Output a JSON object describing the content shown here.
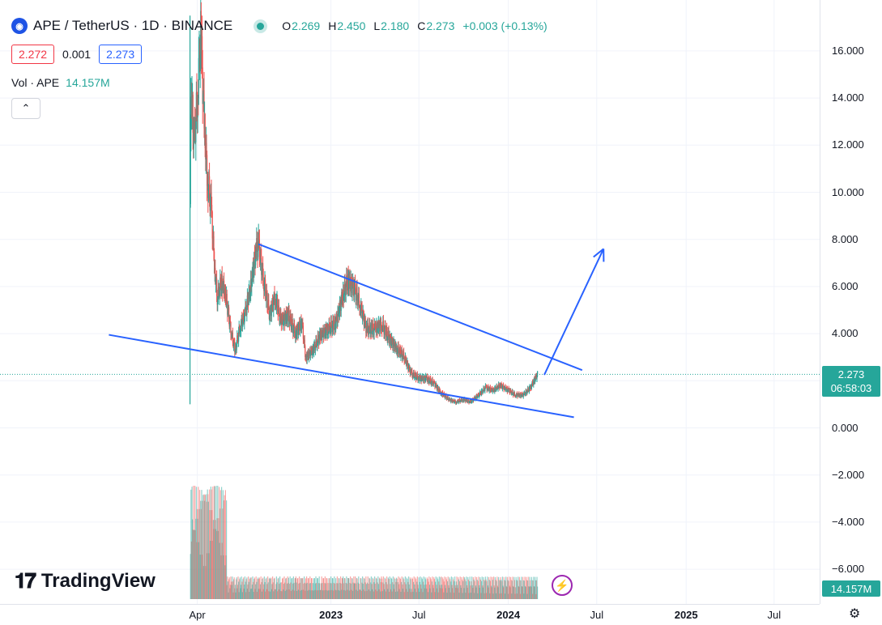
{
  "header": {
    "symbol_icon": "ape-coin-logo",
    "title": "APE / TetherUS · 1D · BINANCE",
    "ohlc": {
      "o_label": "O",
      "o": "2.269",
      "h_label": "H",
      "h": "2.450",
      "l_label": "L",
      "l": "2.180",
      "c_label": "C",
      "c": "2.273",
      "change": "+0.003 (+0.13%)"
    },
    "bid": "2.272",
    "spread": "0.001",
    "ask": "2.273"
  },
  "volume_legend": {
    "label": "Vol · APE",
    "value": "14.157M"
  },
  "collapse_icon": "chevron-up-icon",
  "brand": "TradingView",
  "price_scale": {
    "ticks": [
      "16.000",
      "14.000",
      "12.000",
      "10.000",
      "8.000",
      "6.000",
      "4.000",
      "2.000",
      "0.000",
      "−2.000",
      "−4.000",
      "−6.000"
    ],
    "last_price": "2.273",
    "countdown": "06:58:03",
    "volume_tag": "14.157M"
  },
  "time_scale": {
    "ticks": [
      "Apr",
      "2023",
      "Jul",
      "2024",
      "Jul",
      "2025",
      "Jul"
    ]
  },
  "colors": {
    "up": "#26a69a",
    "down": "#ef5350",
    "drawing": "#2962ff",
    "grid": "#f0f3fa"
  },
  "chart_data": {
    "type": "candlestick",
    "symbol": "APEUSDT",
    "interval": "1D",
    "y_range": [
      -6.5,
      17.5
    ],
    "last_close": 2.273,
    "series": [
      {
        "date": "2022-03-17",
        "close": 9.5
      },
      {
        "date": "2022-03-19",
        "close": 14.8
      },
      {
        "date": "2022-03-25",
        "close": 12.0
      },
      {
        "date": "2022-04-01",
        "close": 14.0
      },
      {
        "date": "2022-04-08",
        "close": 16.8
      },
      {
        "date": "2022-04-15",
        "close": 13.0
      },
      {
        "date": "2022-04-22",
        "close": 10.5
      },
      {
        "date": "2022-04-29",
        "close": 9.5
      },
      {
        "date": "2022-05-06",
        "close": 7.0
      },
      {
        "date": "2022-05-12",
        "close": 5.5
      },
      {
        "date": "2022-05-20",
        "close": 6.2
      },
      {
        "date": "2022-05-28",
        "close": 5.8
      },
      {
        "date": "2022-06-10",
        "close": 4.0
      },
      {
        "date": "2022-06-18",
        "close": 3.3
      },
      {
        "date": "2022-06-28",
        "close": 4.3
      },
      {
        "date": "2022-07-08",
        "close": 4.8
      },
      {
        "date": "2022-07-20",
        "close": 6.0
      },
      {
        "date": "2022-07-30",
        "close": 7.5
      },
      {
        "date": "2022-08-05",
        "close": 7.8
      },
      {
        "date": "2022-08-15",
        "close": 6.3
      },
      {
        "date": "2022-08-28",
        "close": 4.8
      },
      {
        "date": "2022-09-08",
        "close": 5.6
      },
      {
        "date": "2022-09-20",
        "close": 4.5
      },
      {
        "date": "2022-10-05",
        "close": 4.8
      },
      {
        "date": "2022-10-20",
        "close": 4.0
      },
      {
        "date": "2022-11-02",
        "close": 4.5
      },
      {
        "date": "2022-11-10",
        "close": 3.0
      },
      {
        "date": "2022-11-25",
        "close": 3.3
      },
      {
        "date": "2022-12-10",
        "close": 3.9
      },
      {
        "date": "2022-12-25",
        "close": 4.2
      },
      {
        "date": "2023-01-10",
        "close": 4.4
      },
      {
        "date": "2023-01-25",
        "close": 5.6
      },
      {
        "date": "2023-02-05",
        "close": 6.3
      },
      {
        "date": "2023-02-18",
        "close": 5.9
      },
      {
        "date": "2023-03-01",
        "close": 5.3
      },
      {
        "date": "2023-03-15",
        "close": 4.2
      },
      {
        "date": "2023-04-01",
        "close": 4.2
      },
      {
        "date": "2023-04-15",
        "close": 4.4
      },
      {
        "date": "2023-05-01",
        "close": 3.8
      },
      {
        "date": "2023-05-15",
        "close": 3.4
      },
      {
        "date": "2023-06-01",
        "close": 3.0
      },
      {
        "date": "2023-06-15",
        "close": 2.3
      },
      {
        "date": "2023-07-01",
        "close": 2.1
      },
      {
        "date": "2023-07-15",
        "close": 2.1
      },
      {
        "date": "2023-08-01",
        "close": 1.9
      },
      {
        "date": "2023-08-15",
        "close": 1.5
      },
      {
        "date": "2023-09-01",
        "close": 1.2
      },
      {
        "date": "2023-09-15",
        "close": 1.1
      },
      {
        "date": "2023-10-01",
        "close": 1.2
      },
      {
        "date": "2023-10-15",
        "close": 1.1
      },
      {
        "date": "2023-11-01",
        "close": 1.4
      },
      {
        "date": "2023-11-15",
        "close": 1.7
      },
      {
        "date": "2023-12-01",
        "close": 1.6
      },
      {
        "date": "2023-12-15",
        "close": 1.8
      },
      {
        "date": "2024-01-01",
        "close": 1.6
      },
      {
        "date": "2024-01-15",
        "close": 1.4
      },
      {
        "date": "2024-02-01",
        "close": 1.4
      },
      {
        "date": "2024-02-15",
        "close": 1.7
      },
      {
        "date": "2024-03-01",
        "close": 2.273
      }
    ],
    "drawings": [
      {
        "type": "trendline",
        "name": "upper-wedge-line",
        "points": [
          [
            "2022-08-05",
            7.8
          ],
          [
            "2024-06-01",
            2.45
          ]
        ]
      },
      {
        "type": "trendline",
        "name": "lower-wedge-line",
        "points": [
          [
            "2021-10-01",
            3.95
          ],
          [
            "2024-05-15",
            0.45
          ]
        ]
      },
      {
        "type": "arrow",
        "name": "breakout-arrow",
        "points": [
          [
            "2024-03-15",
            2.25
          ],
          [
            "2024-07-15",
            7.6
          ]
        ]
      }
    ]
  }
}
